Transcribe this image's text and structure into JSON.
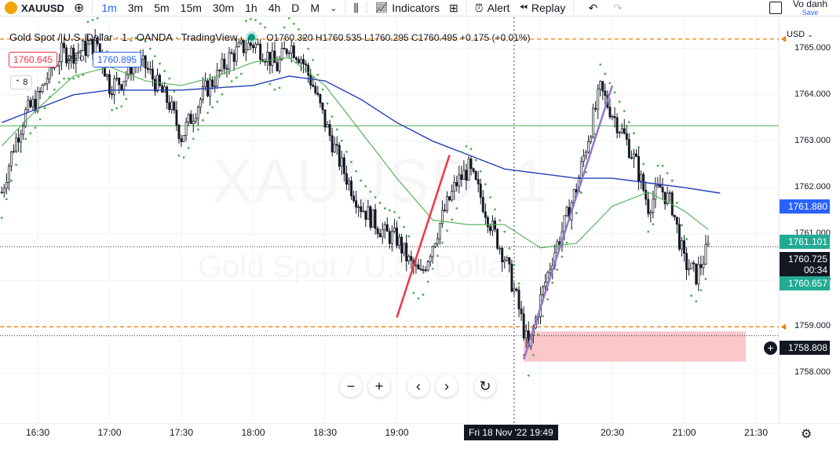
{
  "toolbar": {
    "symbol": "XAUUSD",
    "timeframes": [
      "1m",
      "3m",
      "5m",
      "15m",
      "30m",
      "1h",
      "4h",
      "D",
      "M"
    ],
    "active_timeframe": "1m",
    "indicators_label": "Indicators",
    "alert_label": "Alert",
    "replay_label": "Replay",
    "user_name": "Vo danh",
    "save_label": "Save"
  },
  "legend": {
    "title": "Gold Spot / U.S. Dollar · 1 · OANDA · TradingView",
    "ohlc": "O1760.320 H1760.535 L1760.295 C1760.495 +0.175 (+0.01%)"
  },
  "quote": {
    "sell": "1760.645",
    "spread": "25.0",
    "buy": "1760.895",
    "volume_toggle": "8"
  },
  "axis": {
    "currency": "USD",
    "price_labels": [
      "1765.000",
      "1764.000",
      "1763.000",
      "1762.000",
      "1761.000",
      "1760.000",
      "1759.000",
      "1758.000"
    ],
    "time_labels": [
      "16:30",
      "17:00",
      "17:30",
      "18:00",
      "18:30",
      "19:00",
      "20:30",
      "21:00",
      "21:30"
    ],
    "crosshair_time": "Fri 18 Nov '22   19:49"
  },
  "tags": {
    "ma_slow": "1761.880",
    "ma_fast": "1761.101",
    "last_price": "1760.725",
    "countdown": "00:34",
    "sar": "1760.657",
    "crosshair_price": "1758.808"
  },
  "watermark": {
    "symbol": "XAUUSD, 1",
    "name": "Gold Spot / U.S. Dollar"
  },
  "colors": {
    "up": "#131722",
    "down": "#131722",
    "ma_slow": "#2340b8",
    "ma_fast": "#4caf50",
    "psar": "#4caf50",
    "dashed_level": "#f57c00",
    "red_trend": "#f23645",
    "purple_trend": "#9575cd",
    "zone": "#f8b4b8"
  },
  "chart_data": {
    "type": "candlestick",
    "ylim": [
      1757.5,
      1765.5
    ],
    "levels": {
      "upper_dashed": 1765.2,
      "lower_dashed": 1759.0,
      "horizontal_green": 1763.33,
      "last_price": 1760.725,
      "crosshair": 1758.808
    },
    "close_path": [
      [
        "16:15",
        1761.9
      ],
      [
        "16:20",
        1762.9
      ],
      [
        "16:25",
        1763.6
      ],
      [
        "16:30",
        1763.9
      ],
      [
        "16:35",
        1764.5
      ],
      [
        "16:40",
        1764.9
      ],
      [
        "16:45",
        1764.9
      ],
      [
        "16:50",
        1765.0
      ],
      [
        "16:55",
        1765.1
      ],
      [
        "17:00",
        1764.2
      ],
      [
        "17:05",
        1764.3
      ],
      [
        "17:10",
        1764.7
      ],
      [
        "17:15",
        1764.6
      ],
      [
        "17:20",
        1764.2
      ],
      [
        "17:25",
        1763.8
      ],
      [
        "17:30",
        1763.1
      ],
      [
        "17:35",
        1763.6
      ],
      [
        "17:40",
        1764.1
      ],
      [
        "17:45",
        1764.4
      ],
      [
        "17:50",
        1764.8
      ],
      [
        "17:55",
        1765.0
      ],
      [
        "18:00",
        1765.1
      ],
      [
        "18:05",
        1764.9
      ],
      [
        "18:10",
        1764.6
      ],
      [
        "18:15",
        1765.1
      ],
      [
        "18:20",
        1764.8
      ],
      [
        "18:25",
        1764.2
      ],
      [
        "18:30",
        1763.4
      ],
      [
        "18:35",
        1762.7
      ],
      [
        "18:40",
        1762.1
      ],
      [
        "18:45",
        1761.6
      ],
      [
        "18:50",
        1761.3
      ],
      [
        "18:55",
        1761.0
      ],
      [
        "19:00",
        1760.9
      ],
      [
        "19:05",
        1760.4
      ],
      [
        "19:10",
        1760.1
      ],
      [
        "19:15",
        1760.8
      ],
      [
        "19:20",
        1761.5
      ],
      [
        "19:25",
        1762.1
      ],
      [
        "19:30",
        1762.4
      ],
      [
        "19:35",
        1761.8
      ],
      [
        "19:40",
        1761.1
      ],
      [
        "19:45",
        1760.5
      ],
      [
        "19:50",
        1759.6
      ],
      [
        "19:55",
        1758.5
      ],
      [
        "20:00",
        1759.6
      ],
      [
        "20:05",
        1760.5
      ],
      [
        "20:10",
        1761.2
      ],
      [
        "20:15",
        1762.0
      ],
      [
        "20:20",
        1763.1
      ],
      [
        "20:25",
        1764.1
      ],
      [
        "20:30",
        1763.6
      ],
      [
        "20:35",
        1763.1
      ],
      [
        "20:40",
        1762.5
      ],
      [
        "20:45",
        1761.6
      ],
      [
        "20:50",
        1762.0
      ],
      [
        "20:55",
        1761.6
      ],
      [
        "21:00",
        1760.4
      ],
      [
        "21:05",
        1760.1
      ],
      [
        "21:10",
        1760.7
      ]
    ],
    "ma_slow": [
      [
        "16:15",
        1763.4
      ],
      [
        "16:30",
        1763.7
      ],
      [
        "16:45",
        1764.0
      ],
      [
        "17:00",
        1764.1
      ],
      [
        "17:30",
        1764.1
      ],
      [
        "18:00",
        1764.2
      ],
      [
        "18:15",
        1764.4
      ],
      [
        "18:30",
        1764.3
      ],
      [
        "18:45",
        1763.9
      ],
      [
        "19:00",
        1763.4
      ],
      [
        "19:15",
        1763.0
      ],
      [
        "19:30",
        1762.7
      ],
      [
        "19:45",
        1762.4
      ],
      [
        "20:00",
        1762.3
      ],
      [
        "20:15",
        1762.2
      ],
      [
        "20:30",
        1762.2
      ],
      [
        "20:45",
        1762.1
      ],
      [
        "21:00",
        1762.0
      ],
      [
        "21:15",
        1761.88
      ]
    ],
    "ma_fast": [
      [
        "16:15",
        1762.9
      ],
      [
        "16:30",
        1763.7
      ],
      [
        "16:45",
        1764.4
      ],
      [
        "17:00",
        1764.6
      ],
      [
        "17:15",
        1764.3
      ],
      [
        "17:30",
        1764.2
      ],
      [
        "17:45",
        1764.4
      ],
      [
        "18:00",
        1764.7
      ],
      [
        "18:15",
        1764.8
      ],
      [
        "18:30",
        1764.2
      ],
      [
        "18:45",
        1763.2
      ],
      [
        "19:00",
        1762.2
      ],
      [
        "19:15",
        1761.3
      ],
      [
        "19:30",
        1761.2
      ],
      [
        "19:45",
        1761.2
      ],
      [
        "20:00",
        1760.7
      ],
      [
        "20:15",
        1760.8
      ],
      [
        "20:30",
        1761.6
      ],
      [
        "20:45",
        1761.9
      ],
      [
        "21:00",
        1761.5
      ],
      [
        "21:10",
        1761.1
      ]
    ],
    "trendlines": [
      {
        "color": "red",
        "from": [
          "19:00",
          1759.2
        ],
        "to": [
          "19:22",
          1762.7
        ]
      },
      {
        "color": "purple",
        "from": [
          "19:53",
          1758.3
        ],
        "to": [
          "20:30",
          1764.2
        ]
      }
    ],
    "zone": {
      "from": "19:53",
      "to": "21:25",
      "top": 1758.9,
      "bottom": 1758.25
    }
  }
}
